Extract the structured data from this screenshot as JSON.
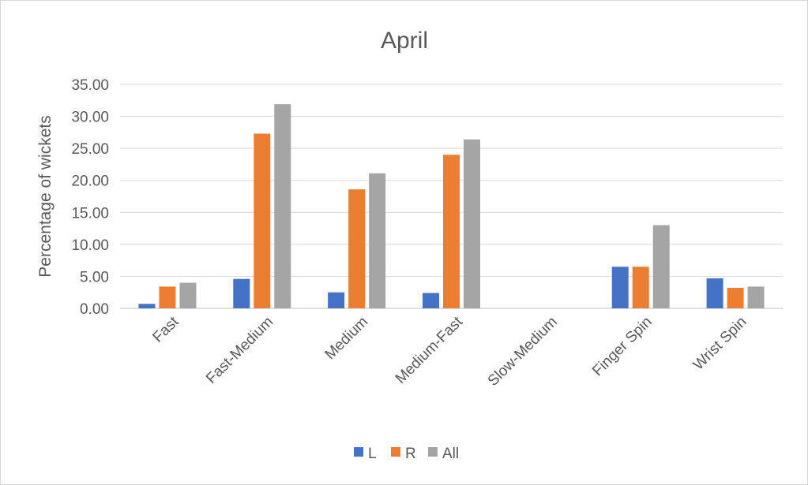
{
  "chart_data": {
    "type": "bar",
    "title": "April",
    "xlabel": "",
    "ylabel": "Percentage of wickets",
    "ylim": [
      0,
      35
    ],
    "yticks": [
      "0.00",
      "5.00",
      "10.00",
      "15.00",
      "20.00",
      "25.00",
      "30.00",
      "35.00"
    ],
    "grid": true,
    "legend_position": "bottom",
    "categories": [
      "Fast",
      "Fast-Medium",
      "Medium",
      "Medium-Fast",
      "Slow-Medium",
      "Finger Spin",
      "Wrist Spin"
    ],
    "series": [
      {
        "name": "L",
        "color": "#4472c4",
        "values": [
          0.7,
          4.6,
          2.5,
          2.4,
          0,
          6.5,
          4.7
        ]
      },
      {
        "name": "R",
        "color": "#ed7d31",
        "values": [
          3.4,
          27.3,
          18.6,
          24.0,
          0,
          6.5,
          3.2
        ]
      },
      {
        "name": "All",
        "color": "#a5a5a5",
        "values": [
          4.0,
          31.9,
          21.1,
          26.4,
          0,
          13.0,
          3.4
        ]
      }
    ]
  }
}
